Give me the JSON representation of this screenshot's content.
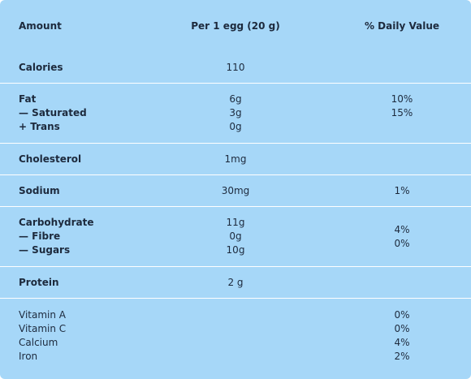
{
  "table": {
    "headers": {
      "amount": "Amount",
      "per_egg": "Per 1 egg (20 g)",
      "daily_value": "% Daily Value"
    },
    "rows": {
      "calories": {
        "label": "Calories",
        "amount": "110",
        "dv": ""
      },
      "fat": {
        "lines": [
          {
            "label": "Fat",
            "amount": "6g",
            "dv": "10%"
          },
          {
            "label": "— Saturated",
            "amount": "3g",
            "dv": "15%"
          },
          {
            "label": "+ Trans",
            "amount": "0g",
            "dv": ""
          }
        ]
      },
      "cholesterol": {
        "label": "Cholesterol",
        "amount": "1mg",
        "dv": ""
      },
      "sodium": {
        "label": "Sodium",
        "amount": "30mg",
        "dv": "1%"
      },
      "carbohydrate": {
        "lines": [
          {
            "label": "Carbohydrate",
            "amount": "11g"
          },
          {
            "label": "— Fibre",
            "amount": "0g"
          },
          {
            "label": "— Sugars",
            "amount": "10g"
          }
        ],
        "dv": [
          "4%",
          "0%"
        ]
      },
      "protein": {
        "label": "Protein",
        "amount": "2 g",
        "dv": ""
      },
      "vitamins": [
        {
          "label": "Vitamin A",
          "dv": "0%"
        },
        {
          "label": "Vitamin C",
          "dv": "0%"
        },
        {
          "label": "Calcium",
          "dv": "4%"
        },
        {
          "label": "Iron",
          "dv": "2%"
        }
      ]
    }
  },
  "colors": {
    "background": "#a6d7f8",
    "divider": "#ffffff",
    "text": "#1d2a3d"
  }
}
